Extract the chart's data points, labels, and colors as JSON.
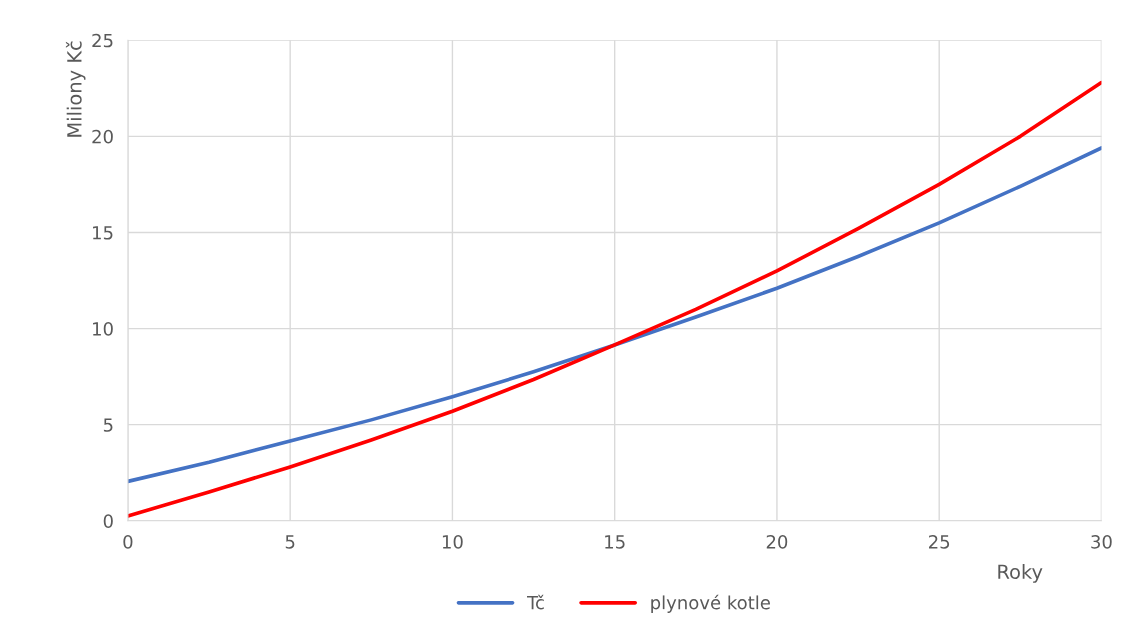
{
  "chart_data": {
    "type": "line",
    "xlabel": "Roky",
    "ylabel": "Miliony Kč",
    "x": [
      0,
      2.5,
      5,
      7.5,
      10,
      12.5,
      15,
      17.5,
      20,
      22.5,
      25,
      27.5,
      30
    ],
    "series": [
      {
        "name": "Tč",
        "color": "#4472c4",
        "values": [
          2.05,
          3.05,
          4.15,
          5.25,
          6.45,
          7.75,
          9.15,
          10.6,
          12.1,
          13.75,
          15.5,
          17.4,
          19.4
        ]
      },
      {
        "name": "plynové kotle",
        "color": "#ff0000",
        "values": [
          0.25,
          1.5,
          2.8,
          4.2,
          5.7,
          7.35,
          9.15,
          11.0,
          13.0,
          15.2,
          17.5,
          20.0,
          22.8
        ]
      }
    ],
    "xlim": [
      0,
      30
    ],
    "xticks": [
      0,
      5,
      10,
      15,
      20,
      25,
      30
    ],
    "ylim": [
      0,
      25
    ],
    "yticks": [
      0,
      5,
      10,
      15,
      20,
      25
    ],
    "grid": true,
    "legend": "bottom",
    "marker": "none",
    "line_style": "solid"
  }
}
